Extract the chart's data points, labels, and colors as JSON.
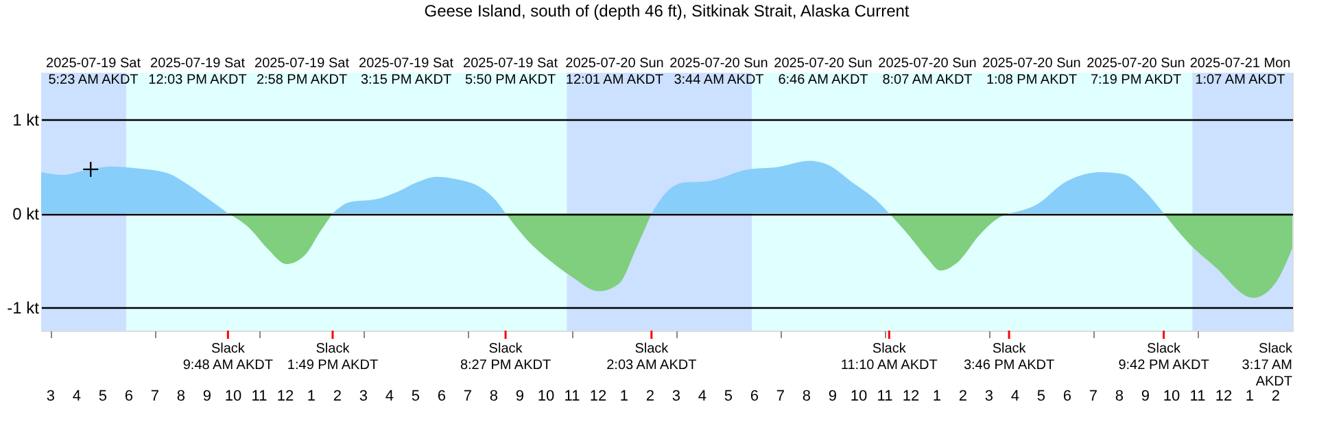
{
  "chart_data": {
    "type": "area",
    "title": "Geese Island, south of (depth 46 ft), Sitkinak Strait, Alaska Current",
    "xlim": [
      "2025-07-19T02:38",
      "2025-07-21T02:38"
    ],
    "xticks": [
      {
        "value": "2025-07-19T03:00",
        "label": "3"
      },
      {
        "value": "2025-07-19T04:00",
        "label": "4"
      },
      {
        "value": "2025-07-19T05:00",
        "label": "5"
      },
      {
        "value": "2025-07-19T06:00",
        "label": "6"
      },
      {
        "value": "2025-07-19T07:00",
        "label": "7"
      },
      {
        "value": "2025-07-19T08:00",
        "label": "8"
      },
      {
        "value": "2025-07-19T09:00",
        "label": "9"
      },
      {
        "value": "2025-07-19T10:00",
        "label": "10"
      },
      {
        "value": "2025-07-19T11:00",
        "label": "11"
      },
      {
        "value": "2025-07-19T12:00",
        "label": "12"
      },
      {
        "value": "2025-07-19T13:00",
        "label": "1"
      },
      {
        "value": "2025-07-19T14:00",
        "label": "2"
      },
      {
        "value": "2025-07-19T15:00",
        "label": "3"
      },
      {
        "value": "2025-07-19T16:00",
        "label": "4"
      },
      {
        "value": "2025-07-19T17:00",
        "label": "5"
      },
      {
        "value": "2025-07-19T18:00",
        "label": "6"
      },
      {
        "value": "2025-07-19T19:00",
        "label": "7"
      },
      {
        "value": "2025-07-19T20:00",
        "label": "8"
      },
      {
        "value": "2025-07-19T21:00",
        "label": "9"
      },
      {
        "value": "2025-07-19T22:00",
        "label": "10"
      },
      {
        "value": "2025-07-19T23:00",
        "label": "11"
      },
      {
        "value": "2025-07-20T00:00",
        "label": "12"
      },
      {
        "value": "2025-07-20T01:00",
        "label": "1"
      },
      {
        "value": "2025-07-20T02:00",
        "label": "2"
      },
      {
        "value": "2025-07-20T03:00",
        "label": "3"
      },
      {
        "value": "2025-07-20T04:00",
        "label": "4"
      },
      {
        "value": "2025-07-20T05:00",
        "label": "5"
      },
      {
        "value": "2025-07-20T06:00",
        "label": "6"
      },
      {
        "value": "2025-07-20T07:00",
        "label": "7"
      },
      {
        "value": "2025-07-20T08:00",
        "label": "8"
      },
      {
        "value": "2025-07-20T09:00",
        "label": "9"
      },
      {
        "value": "2025-07-20T10:00",
        "label": "10"
      },
      {
        "value": "2025-07-20T11:00",
        "label": "11"
      },
      {
        "value": "2025-07-20T12:00",
        "label": "12"
      },
      {
        "value": "2025-07-20T13:00",
        "label": "1"
      },
      {
        "value": "2025-07-20T14:00",
        "label": "2"
      },
      {
        "value": "2025-07-20T15:00",
        "label": "3"
      },
      {
        "value": "2025-07-20T16:00",
        "label": "4"
      },
      {
        "value": "2025-07-20T17:00",
        "label": "5"
      },
      {
        "value": "2025-07-20T18:00",
        "label": "6"
      },
      {
        "value": "2025-07-20T19:00",
        "label": "7"
      },
      {
        "value": "2025-07-20T20:00",
        "label": "8"
      },
      {
        "value": "2025-07-20T21:00",
        "label": "9"
      },
      {
        "value": "2025-07-20T22:00",
        "label": "10"
      },
      {
        "value": "2025-07-20T23:00",
        "label": "11"
      },
      {
        "value": "2025-07-21T00:00",
        "label": "12"
      },
      {
        "value": "2025-07-21T01:00",
        "label": "1"
      },
      {
        "value": "2025-07-21T02:00",
        "label": "2"
      }
    ],
    "ylim": [
      -1.25,
      1.5
    ],
    "yticks": [
      {
        "value": 1,
        "label": "1 kt"
      },
      {
        "value": 0,
        "label": "0 kt"
      },
      {
        "value": -1,
        "label": "-1 kt"
      }
    ],
    "grid": "y",
    "bands": [
      {
        "axis": "x",
        "from": "2025-07-19T02:38",
        "to": "2025-07-19T05:54",
        "color": "#cce0ff"
      },
      {
        "axis": "x",
        "from": "2025-07-19T05:54",
        "to": "2025-07-19T22:48",
        "color": "#e0ffff"
      },
      {
        "axis": "x",
        "from": "2025-07-19T22:48",
        "to": "2025-07-20T05:54",
        "color": "#cce0ff"
      },
      {
        "axis": "x",
        "from": "2025-07-20T05:54",
        "to": "2025-07-20T22:48",
        "color": "#e0ffff"
      },
      {
        "axis": "x",
        "from": "2025-07-20T22:48",
        "to": "2025-07-21T02:38",
        "color": "#cce0ff"
      }
    ],
    "series": [
      {
        "color": "#87cefa",
        "x": [
          "2025-07-19T02:38",
          "2025-07-19T03:28",
          "2025-07-19T04:28",
          "2025-07-19T05:18",
          "2025-07-19T06:18",
          "2025-07-19T07:28",
          "2025-07-19T08:18",
          "2025-07-19T08:58",
          "2025-07-19T09:48"
        ],
        "values": [
          0.44,
          0.41,
          0.47,
          0.5,
          0.48,
          0.43,
          0.3,
          0.17,
          0
        ]
      },
      {
        "color": "#7fcf7f",
        "x": [
          "2025-07-19T09:48",
          "2025-07-19T10:38",
          "2025-07-19T11:18",
          "2025-07-19T12:03",
          "2025-07-19T12:48",
          "2025-07-19T13:18",
          "2025-07-19T13:49"
        ],
        "values": [
          0,
          -0.16,
          -0.37,
          -0.54,
          -0.43,
          -0.21,
          0
        ]
      },
      {
        "color": "#87cefa",
        "x": [
          "2025-07-19T13:49",
          "2025-07-19T14:28",
          "2025-07-19T15:28",
          "2025-07-19T16:18",
          "2025-07-19T17:08",
          "2025-07-19T17:48",
          "2025-07-19T18:38",
          "2025-07-19T19:28",
          "2025-07-19T19:58",
          "2025-07-19T20:27"
        ],
        "values": [
          0,
          0.12,
          0.15,
          0.23,
          0.34,
          0.39,
          0.36,
          0.28,
          0.17,
          0
        ]
      },
      {
        "color": "#7fcf7f",
        "x": [
          "2025-07-19T20:27",
          "2025-07-19T21:18",
          "2025-07-19T22:08",
          "2025-07-19T22:58",
          "2025-07-20T00:01",
          "2025-07-20T00:48",
          "2025-07-20T01:28",
          "2025-07-20T02:03"
        ],
        "values": [
          0,
          -0.29,
          -0.5,
          -0.67,
          -0.83,
          -0.75,
          -0.37,
          0
        ]
      },
      {
        "color": "#87cefa",
        "x": [
          "2025-07-20T02:03",
          "2025-07-20T02:38",
          "2025-07-20T03:18",
          "2025-07-20T04:08",
          "2025-07-20T05:48",
          "2025-07-20T06:48",
          "2025-07-20T08:07",
          "2025-07-20T08:48",
          "2025-07-20T09:48",
          "2025-07-20T10:38",
          "2025-07-20T11:10"
        ],
        "values": [
          0,
          0.23,
          0.33,
          0.34,
          0.47,
          0.49,
          0.56,
          0.52,
          0.32,
          0.15,
          0
        ]
      },
      {
        "color": "#7fcf7f",
        "x": [
          "2025-07-20T11:10",
          "2025-07-20T11:58",
          "2025-07-20T12:38",
          "2025-07-20T13:08",
          "2025-07-20T13:48",
          "2025-07-20T14:38",
          "2025-07-20T15:18",
          "2025-07-20T15:46"
        ],
        "values": [
          0,
          -0.25,
          -0.48,
          -0.61,
          -0.52,
          -0.23,
          -0.06,
          0
        ]
      },
      {
        "color": "#87cefa",
        "x": [
          "2025-07-20T15:46",
          "2025-07-20T16:48",
          "2025-07-20T17:58",
          "2025-07-20T19:19",
          "2025-07-20T20:08",
          "2025-07-20T20:58",
          "2025-07-20T21:42"
        ],
        "values": [
          0,
          0.09,
          0.34,
          0.44,
          0.42,
          0.24,
          0
        ]
      },
      {
        "color": "#7fcf7f",
        "x": [
          "2025-07-20T21:42",
          "2025-07-20T22:38",
          "2025-07-20T23:38",
          "2025-07-21T01:08",
          "2025-07-21T01:58",
          "2025-07-21T02:38"
        ],
        "values": [
          0,
          -0.31,
          -0.56,
          -0.9,
          -0.75,
          -0.37
        ]
      },
      {
        "type": "scatter",
        "marker": "cross",
        "color": "#000000",
        "x": [
          "2025-07-19T04:32"
        ],
        "values": [
          0.47
        ]
      }
    ],
    "annotations": [
      "2025-07-19 Sat 5:23 AM AKDT",
      "2025-07-19 Sat 12:03 PM AKDT",
      "2025-07-19 Sat 2:58 PM AKDT",
      "2025-07-19 Sat 3:15 PM AKDT",
      "2025-07-19 Sat 5:50 PM AKDT",
      "2025-07-20 Sun 12:01 AM AKDT",
      "2025-07-20 Sun 3:44 AM AKDT",
      "2025-07-20 Sun 6:46 AM AKDT",
      "2025-07-20 Sun 8:07 AM AKDT",
      "2025-07-20 Sun 1:08 PM AKDT",
      "2025-07-20 Sun 7:19 PM AKDT",
      "2025-07-21 Mon 1:07 AM AKDT",
      {
        "text": "Slack 9:48 AM AKDT",
        "x": "2025-07-19T09:48"
      },
      {
        "text": "Slack 1:49 PM AKDT",
        "x": "2025-07-19T13:49"
      },
      {
        "text": "Slack 8:27 PM AKDT",
        "x": "2025-07-19T20:27"
      },
      {
        "text": "Slack 2:03 AM AKDT",
        "x": "2025-07-20T02:03"
      },
      {
        "text": "Slack 11:10 AM AKDT",
        "x": "2025-07-20T11:10"
      },
      {
        "text": "Slack 3:46 PM AKDT",
        "x": "2025-07-20T15:46"
      },
      {
        "text": "Slack 9:42 PM AKDT",
        "x": "2025-07-20T21:42"
      },
      "Slack 3:17 AM AKDT"
    ]
  }
}
